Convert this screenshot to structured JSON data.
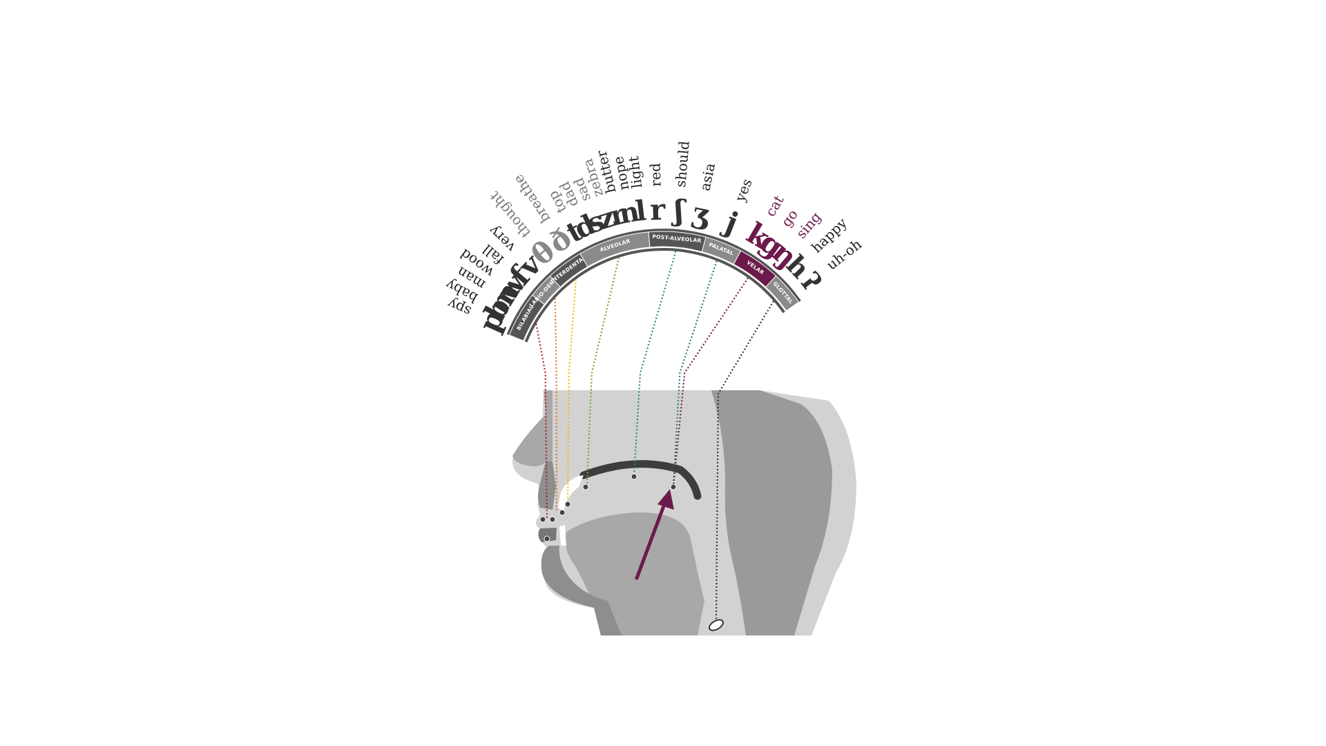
{
  "colors": {
    "band_dark": "#555555",
    "band_gray": "#8a8a8a",
    "highlight": "#6b1a4b",
    "head_light": "#d2d2d2",
    "head_mid": "#a8a8a8",
    "head_dark": "#7c7c7c",
    "palate": "#3d3d3d"
  },
  "places": [
    {
      "key": "bilabial",
      "label": "BILABIAL",
      "symbols": "pbmw",
      "examples": [
        "spy",
        "baby",
        "man",
        "wood"
      ],
      "line_color": "#b22222",
      "highlight": false
    },
    {
      "key": "labiodental",
      "label": "LABIO-DENTAL",
      "symbols": "fv",
      "examples": [
        "fall",
        "very"
      ],
      "line_color": "#e07020",
      "highlight": false
    },
    {
      "key": "interdental",
      "label": "INTERDENTAL",
      "symbols": "θð",
      "examples": [
        "thought",
        "breathe"
      ],
      "line_color": "#e6c000",
      "highlight": false
    },
    {
      "key": "alveolar",
      "label": "ALVEOLAR",
      "symbols": "tdszrnl",
      "examples": [
        "top",
        "dad",
        "sad",
        "zebra",
        "butter",
        "nope",
        "light"
      ],
      "line_color": "#6aa630",
      "highlight": false
    },
    {
      "key": "postalveolar",
      "label": "POST-ALVEOLAR",
      "symbols": "rʃʒ",
      "examples": [
        "red",
        "should",
        "asia"
      ],
      "line_color": "#2e8b57",
      "highlight": false
    },
    {
      "key": "palatal",
      "label": "PALATAL",
      "symbols": "j",
      "examples": [
        "yes"
      ],
      "line_color": "#2a7a7a",
      "highlight": false
    },
    {
      "key": "velar",
      "label": "VELAR",
      "symbols": "kgŋ",
      "examples": [
        "cat",
        "go",
        "sing"
      ],
      "line_color": "#6b1a4b",
      "highlight": true
    },
    {
      "key": "glottal",
      "label": "GLOTTAL",
      "symbols": "hʔ",
      "examples": [
        "happy",
        "uh-oh"
      ],
      "line_color": "#333333",
      "highlight": false
    }
  ]
}
